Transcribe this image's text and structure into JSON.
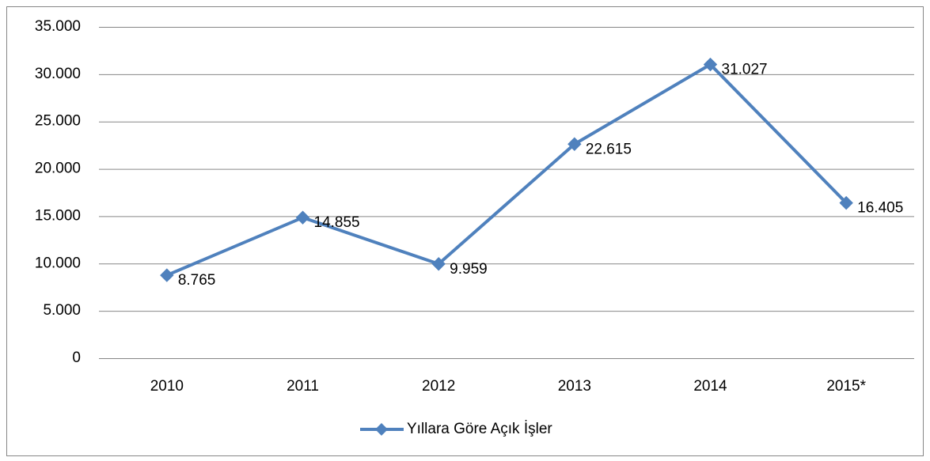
{
  "chart_data": {
    "type": "line",
    "categories": [
      "2010",
      "2011",
      "2012",
      "2013",
      "2014",
      "2015*"
    ],
    "series": [
      {
        "name": "Yıllara Göre Açık İşler",
        "color": "#4f81bd",
        "values": [
          8765,
          14855,
          9959,
          22615,
          31027,
          16405
        ],
        "value_labels": [
          "8.765",
          "14.855",
          "9.959",
          "22.615",
          "31.027",
          "16.405"
        ]
      }
    ],
    "ylim": [
      0,
      35000
    ],
    "yticks": [
      0,
      {
        "value": 5000,
        "label": "5.000"
      },
      {
        "value": 10000,
        "label": "10.000"
      },
      {
        "value": 15000,
        "label": "15.000"
      },
      {
        "value": 20000,
        "label": "20.000"
      },
      {
        "value": 25000,
        "label": "25.000"
      },
      {
        "value": 30000,
        "label": "30.000"
      },
      {
        "value": 35000,
        "label": "35.000"
      }
    ],
    "grid": true,
    "legend": "bottom"
  }
}
